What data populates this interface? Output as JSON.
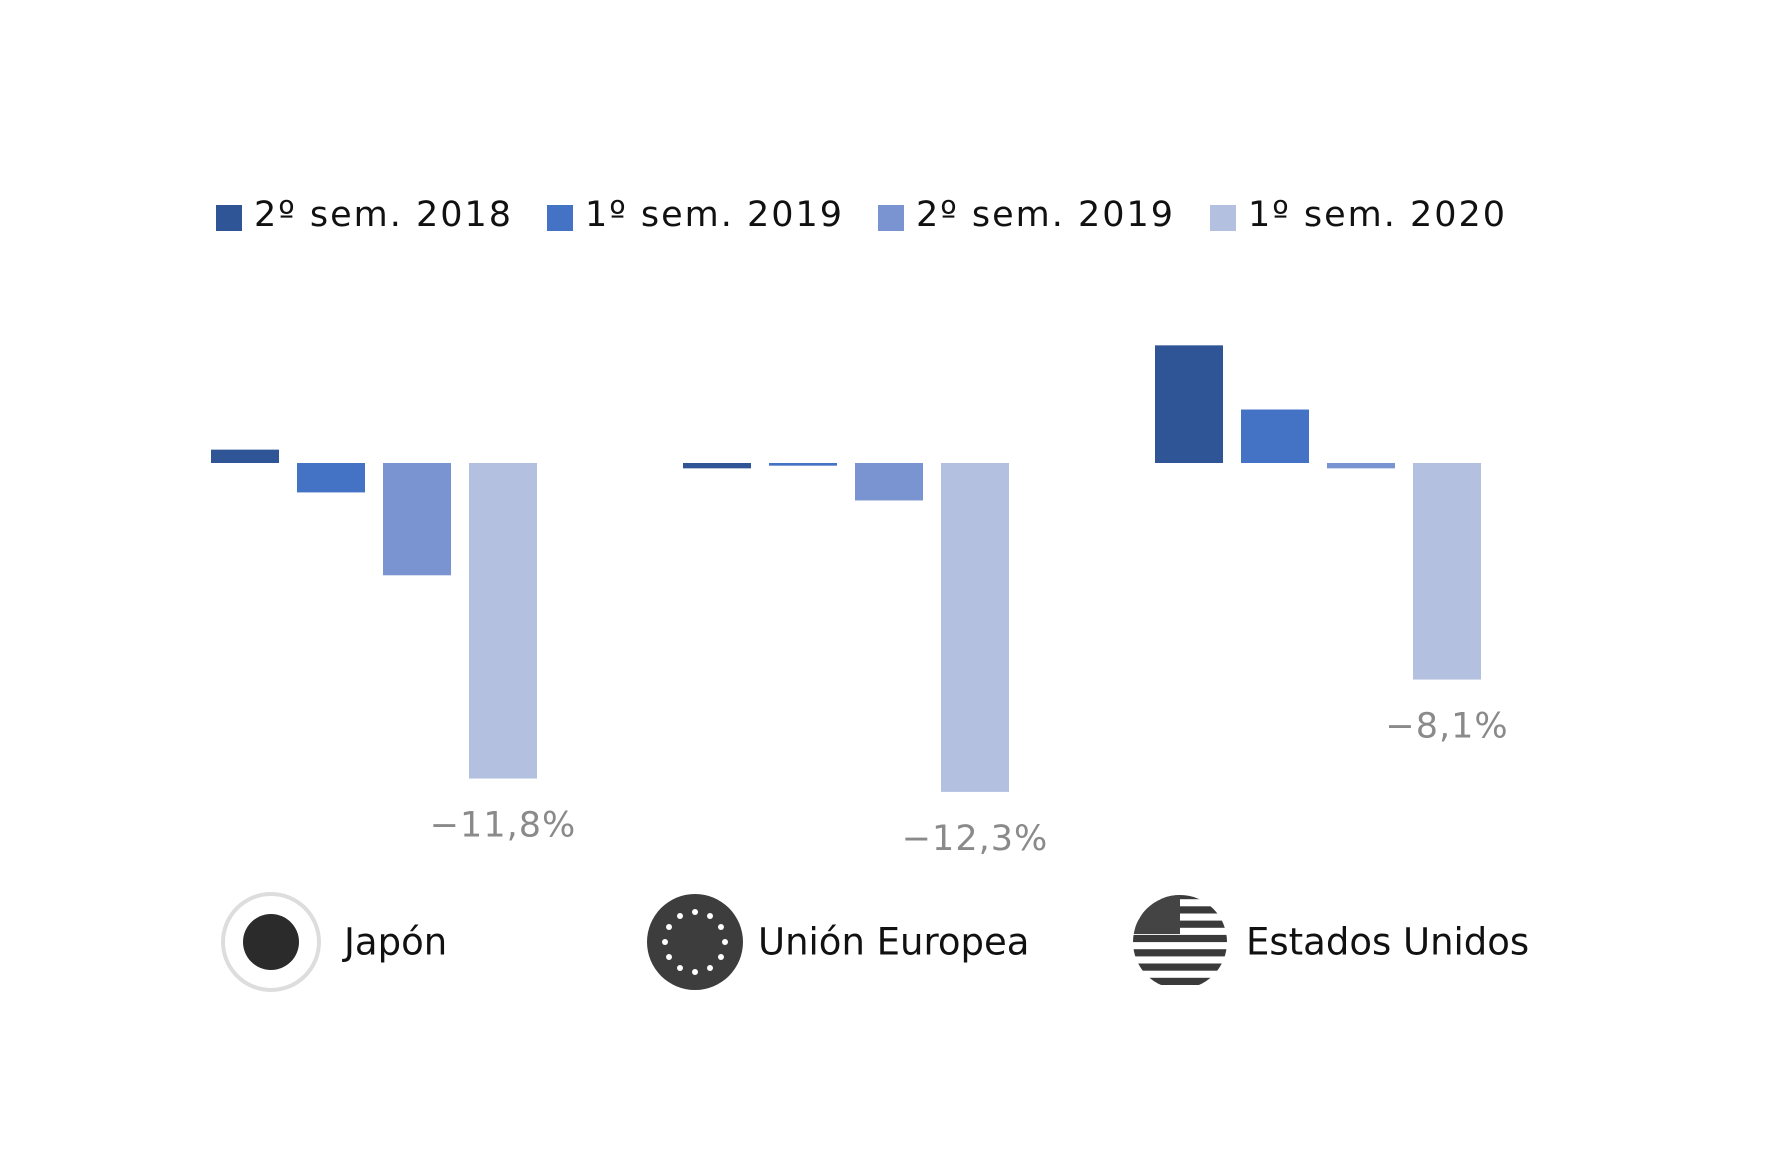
{
  "chart_data": {
    "type": "bar",
    "categories": [
      "Japón",
      "Unión Europea",
      "Estados Unidos"
    ],
    "series": [
      {
        "name": "2º sem. 2018",
        "color": "#2f5597",
        "values": [
          0.5,
          -0.2,
          4.4
        ]
      },
      {
        "name": "1º sem. 2019",
        "color": "#4472c4",
        "values": [
          -1.1,
          -0.1,
          2.0
        ]
      },
      {
        "name": "2º sem. 2019",
        "color": "#7a93d1",
        "values": [
          -4.2,
          -1.4,
          -0.2
        ]
      },
      {
        "name": "1º sem. 2020",
        "color": "#b4c0e0",
        "values": [
          -11.8,
          -12.3,
          -8.1
        ],
        "value_labels": [
          "−11,8%",
          "−12,3%",
          "−8,1%"
        ]
      }
    ]
  }
}
